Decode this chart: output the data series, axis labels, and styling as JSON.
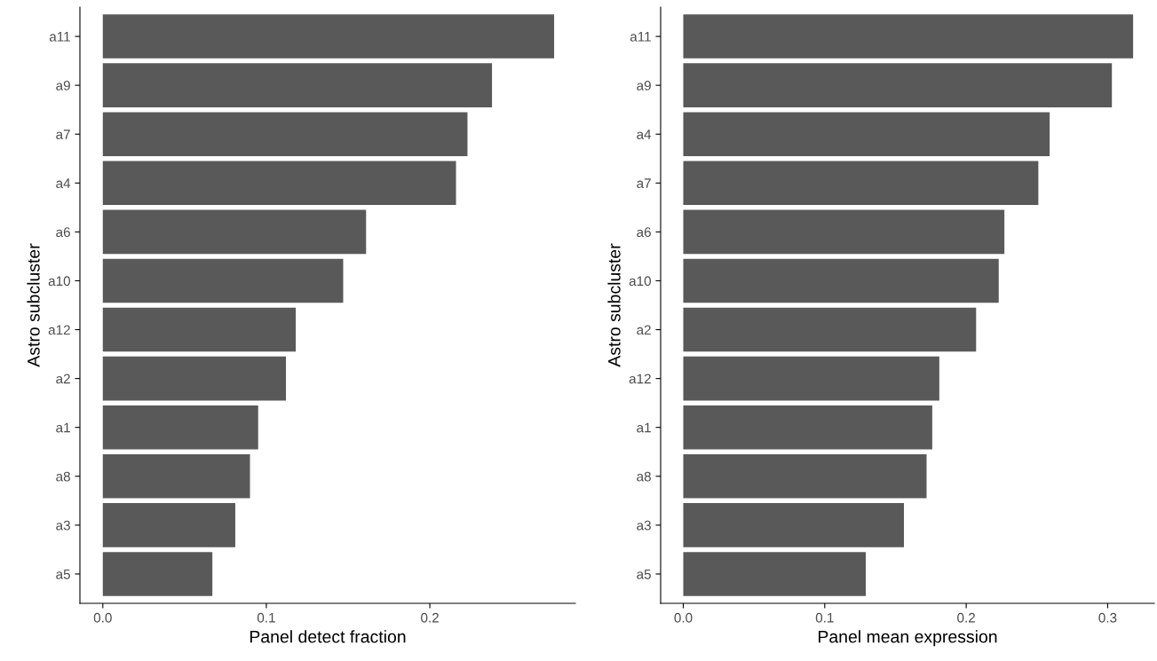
{
  "chart_data": [
    {
      "type": "bar",
      "orientation": "horizontal",
      "xlabel": "Panel detect fraction",
      "ylabel": "Astro subcluster",
      "categories": [
        "a11",
        "a9",
        "a7",
        "a4",
        "a6",
        "a10",
        "a12",
        "a2",
        "a1",
        "a8",
        "a3",
        "a5"
      ],
      "series": [
        {
          "color": "#595959",
          "values": [
            0.276,
            0.238,
            0.223,
            0.216,
            0.161,
            0.147,
            0.118,
            0.112,
            0.095,
            0.09,
            0.081,
            0.067
          ]
        }
      ],
      "xlim": [
        -0.014,
        0.289
      ],
      "xticks": [
        {
          "value": 0,
          "label": "0.0"
        },
        0.1,
        0.2
      ],
      "grid": false,
      "legend": false
    },
    {
      "type": "bar",
      "orientation": "horizontal",
      "xlabel": "Panel mean expression",
      "ylabel": "Astro subcluster",
      "categories": [
        "a11",
        "a9",
        "a4",
        "a7",
        "a6",
        "a10",
        "a2",
        "a12",
        "a1",
        "a8",
        "a3",
        "a5"
      ],
      "series": [
        {
          "color": "#595959",
          "values": [
            0.318,
            0.303,
            0.259,
            0.251,
            0.227,
            0.223,
            0.207,
            0.181,
            0.176,
            0.172,
            0.156,
            0.129
          ]
        }
      ],
      "xlim": [
        -0.016,
        0.333
      ],
      "xticks": [
        {
          "value": 0,
          "label": "0.0"
        },
        0.1,
        0.2,
        0.3
      ],
      "grid": false,
      "legend": false
    }
  ]
}
